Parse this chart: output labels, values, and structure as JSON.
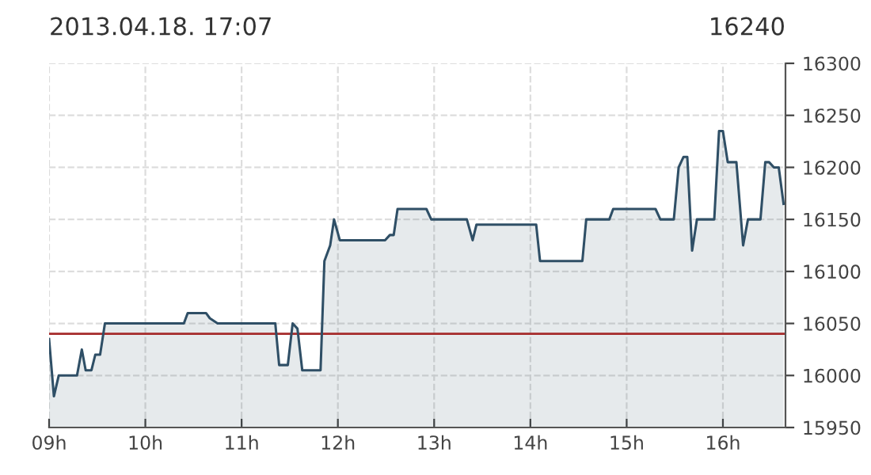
{
  "chart_data": {
    "type": "area",
    "title": "2013.04.18. 17:07",
    "subtitle": "16240",
    "x": [
      9.0,
      9.05,
      9.1,
      9.29,
      9.34,
      9.38,
      9.44,
      9.48,
      9.53,
      9.58,
      10.4,
      10.44,
      10.63,
      10.67,
      10.75,
      11.35,
      11.39,
      11.48,
      11.53,
      11.58,
      11.63,
      11.82,
      11.86,
      11.92,
      11.96,
      12.02,
      12.49,
      12.54,
      12.58,
      12.62,
      12.92,
      12.97,
      13.34,
      13.4,
      13.44,
      14.06,
      14.1,
      14.54,
      14.58,
      14.82,
      14.86,
      15.3,
      15.35,
      15.49,
      15.54,
      15.59,
      15.63,
      15.68,
      15.73,
      15.91,
      15.96,
      16.0,
      16.05,
      16.14,
      16.21,
      16.26,
      16.39,
      16.44,
      16.48,
      16.53,
      16.58,
      16.63
    ],
    "series": [
      {
        "color": "#2f4f66",
        "values": [
          16035,
          15980,
          16000,
          16000,
          16025,
          16005,
          16005,
          16020,
          16020,
          16050,
          16050,
          16060,
          16060,
          16055,
          16050,
          16050,
          16010,
          16010,
          16050,
          16045,
          16005,
          16005,
          16110,
          16125,
          16150,
          16130,
          16130,
          16135,
          16135,
          16160,
          16160,
          16150,
          16150,
          16130,
          16145,
          16145,
          16110,
          16110,
          16150,
          16150,
          16160,
          16160,
          16150,
          16150,
          16200,
          16210,
          16210,
          16120,
          16150,
          16150,
          16235,
          16235,
          16205,
          16205,
          16125,
          16150,
          16150,
          16205,
          16205,
          16200,
          16200,
          16165
        ]
      }
    ],
    "xlim": [
      9,
      16.65
    ],
    "xticks": [
      {
        "value": 9,
        "label": "09h"
      },
      {
        "value": 10,
        "label": "10h"
      },
      {
        "value": 11,
        "label": "11h"
      },
      {
        "value": 12,
        "label": "12h"
      },
      {
        "value": 13,
        "label": "13h"
      },
      {
        "value": 14,
        "label": "14h"
      },
      {
        "value": 15,
        "label": "15h"
      },
      {
        "value": 16,
        "label": "16h"
      }
    ],
    "ylim": [
      15950,
      16300
    ],
    "yticks": [
      15950,
      16000,
      16050,
      16100,
      16150,
      16200,
      16250,
      16300
    ],
    "ref_lines": [
      {
        "axis": "y",
        "value": 16040,
        "color": "#a52a2a"
      }
    ],
    "grid": true
  }
}
